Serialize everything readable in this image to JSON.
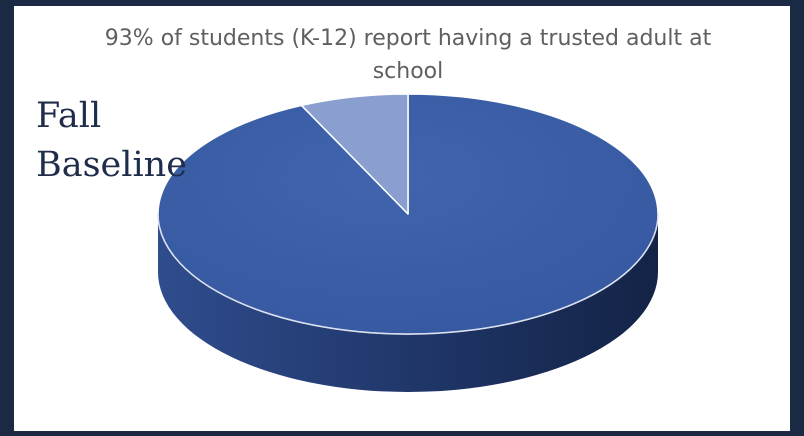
{
  "slide": {
    "label_line1": "Fall",
    "label_line2": "Baseline"
  },
  "chart_data": {
    "type": "pie",
    "title": "93% of students (K-12) report having a trusted adult at school",
    "legend": "none",
    "three_d": true,
    "slices": [
      {
        "value": 93,
        "color": "#3b5ea6"
      },
      {
        "value": 7,
        "color": "#8a9fd0"
      }
    ]
  }
}
